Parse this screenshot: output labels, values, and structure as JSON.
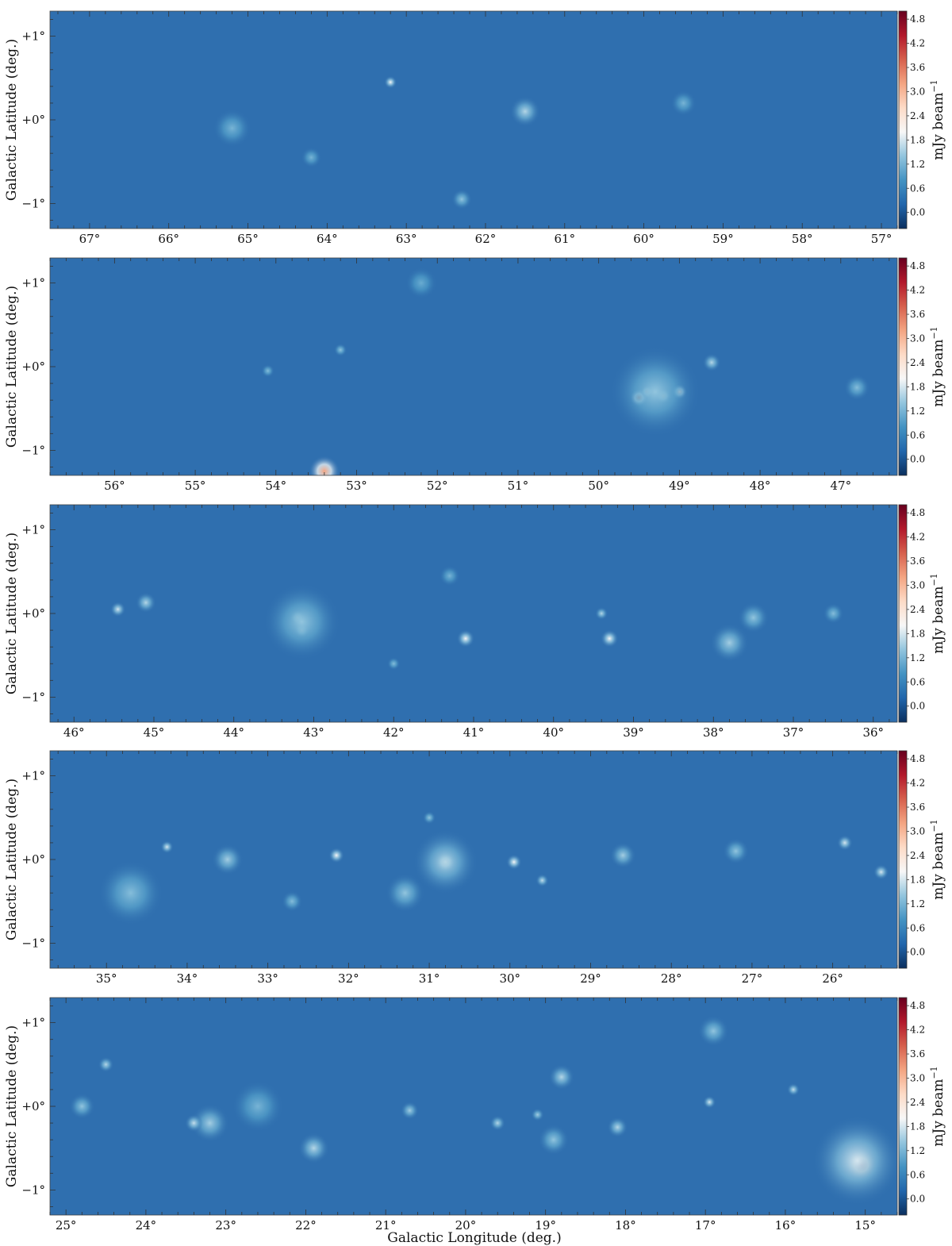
{
  "chart_data": {
    "type": "heatmap",
    "xlabel": "Galactic Longitude (deg.)",
    "ylabel": "Galactic Latitude (deg.)",
    "colorbar": {
      "label": "mJy beam$^{-1}$",
      "label_text": "mJy beam",
      "label_sup": "−1",
      "range": [
        -0.4,
        5.0
      ],
      "ticks": [
        "0.0",
        "0.6",
        "1.2",
        "1.8",
        "2.4",
        "3.0",
        "3.6",
        "4.2",
        "4.8"
      ],
      "tick_values": [
        0.0,
        0.6,
        1.2,
        1.8,
        2.4,
        3.0,
        3.6,
        4.2,
        4.8
      ],
      "colormap": "RdBu_r",
      "stops": [
        "#0b305f",
        "#2166ac",
        "#4393c3",
        "#92c5de",
        "#f7f7f7",
        "#fddbc7",
        "#f4a582",
        "#d6604d",
        "#b2182b",
        "#67001f"
      ]
    },
    "background_color": "#2f6faf",
    "panels": [
      {
        "xlim": [
          67.5,
          56.8
        ],
        "ylim": [
          -1.3,
          1.3
        ],
        "xticks": [
          67,
          66,
          65,
          64,
          63,
          62,
          61,
          60,
          59,
          58,
          57
        ],
        "xtick_labels": [
          "67°",
          "66°",
          "65°",
          "64°",
          "63°",
          "62°",
          "61°",
          "60°",
          "59°",
          "58°",
          "57°"
        ],
        "yticks": [
          1,
          0,
          -1
        ],
        "ytick_labels": [
          "+1°",
          "+0°",
          "−1°"
        ],
        "sources": [
          {
            "l": 63.2,
            "b": 0.45,
            "r": 0.05,
            "peak": 2.0
          },
          {
            "l": 61.5,
            "b": 0.1,
            "r": 0.12,
            "peak": 1.6
          },
          {
            "l": 65.2,
            "b": -0.1,
            "r": 0.15,
            "peak": 1.2
          },
          {
            "l": 62.3,
            "b": -0.95,
            "r": 0.08,
            "peak": 1.4
          },
          {
            "l": 59.5,
            "b": 0.2,
            "r": 0.1,
            "peak": 1.2
          },
          {
            "l": 64.2,
            "b": -0.45,
            "r": 0.08,
            "peak": 1.2
          }
        ]
      },
      {
        "xlim": [
          56.8,
          46.3
        ],
        "ylim": [
          -1.3,
          1.3
        ],
        "xticks": [
          56,
          55,
          54,
          53,
          52,
          51,
          50,
          49,
          48,
          47
        ],
        "xtick_labels": [
          "56°",
          "55°",
          "54°",
          "53°",
          "52°",
          "51°",
          "50°",
          "49°",
          "48°",
          "47°"
        ],
        "yticks": [
          1,
          0,
          -1
        ],
        "ytick_labels": [
          "+1°",
          "+0°",
          "−1°"
        ],
        "sources": [
          {
            "l": 49.5,
            "b": -0.37,
            "r": 0.07,
            "peak": 3.5
          },
          {
            "l": 49.4,
            "b": -0.3,
            "r": 0.05,
            "peak": 2.8
          },
          {
            "l": 49.2,
            "b": -0.35,
            "r": 0.06,
            "peak": 2.6
          },
          {
            "l": 49.0,
            "b": -0.3,
            "r": 0.06,
            "peak": 2.5
          },
          {
            "l": 49.3,
            "b": -0.3,
            "r": 0.35,
            "peak": 1.4
          },
          {
            "l": 48.6,
            "b": 0.05,
            "r": 0.07,
            "peak": 1.6
          },
          {
            "l": 46.8,
            "b": -0.25,
            "r": 0.1,
            "peak": 1.3
          },
          {
            "l": 53.4,
            "b": -1.25,
            "r": 0.12,
            "peak": 3.2
          },
          {
            "l": 52.2,
            "b": 1.0,
            "r": 0.12,
            "peak": 1.1
          },
          {
            "l": 53.2,
            "b": 0.2,
            "r": 0.05,
            "peak": 1.4
          },
          {
            "l": 54.1,
            "b": -0.05,
            "r": 0.05,
            "peak": 1.3
          }
        ]
      },
      {
        "xlim": [
          46.3,
          35.7
        ],
        "ylim": [
          -1.3,
          1.3
        ],
        "xticks": [
          46,
          45,
          44,
          43,
          42,
          41,
          40,
          39,
          38,
          37,
          36
        ],
        "xtick_labels": [
          "46°",
          "45°",
          "44°",
          "43°",
          "42°",
          "41°",
          "40°",
          "39°",
          "38°",
          "37°",
          "36°"
        ],
        "yticks": [
          1,
          0,
          -1
        ],
        "ytick_labels": [
          "+1°",
          "+0°",
          "−1°"
        ],
        "sources": [
          {
            "l": 43.2,
            "b": -0.05,
            "r": 0.06,
            "peak": 2.4
          },
          {
            "l": 43.15,
            "b": -0.2,
            "r": 0.06,
            "peak": 2.3
          },
          {
            "l": 43.15,
            "b": -0.1,
            "r": 0.3,
            "peak": 1.4
          },
          {
            "l": 45.45,
            "b": 0.05,
            "r": 0.06,
            "peak": 1.8
          },
          {
            "l": 45.1,
            "b": 0.13,
            "r": 0.08,
            "peak": 1.6
          },
          {
            "l": 41.1,
            "b": -0.3,
            "r": 0.07,
            "peak": 2.0
          },
          {
            "l": 39.3,
            "b": -0.3,
            "r": 0.07,
            "peak": 2.0
          },
          {
            "l": 39.4,
            "b": 0.0,
            "r": 0.05,
            "peak": 1.6
          },
          {
            "l": 37.8,
            "b": -0.35,
            "r": 0.15,
            "peak": 1.5
          },
          {
            "l": 37.5,
            "b": -0.05,
            "r": 0.12,
            "peak": 1.4
          },
          {
            "l": 36.5,
            "b": 0.0,
            "r": 0.08,
            "peak": 1.3
          },
          {
            "l": 42.0,
            "b": -0.6,
            "r": 0.05,
            "peak": 1.3
          },
          {
            "l": 41.3,
            "b": 0.45,
            "r": 0.08,
            "peak": 1.2
          }
        ]
      },
      {
        "xlim": [
          35.7,
          25.2
        ],
        "ylim": [
          -1.3,
          1.3
        ],
        "xticks": [
          35,
          34,
          33,
          32,
          31,
          30,
          29,
          28,
          27,
          26
        ],
        "xtick_labels": [
          "35°",
          "34°",
          "33°",
          "32°",
          "31°",
          "30°",
          "29°",
          "28°",
          "27°",
          "26°"
        ],
        "yticks": [
          1,
          0,
          -1
        ],
        "ytick_labels": [
          "+1°",
          "+0°",
          "−1°"
        ],
        "sources": [
          {
            "l": 30.8,
            "b": -0.03,
            "r": 0.07,
            "peak": 3.2
          },
          {
            "l": 30.8,
            "b": -0.03,
            "r": 0.25,
            "peak": 1.6
          },
          {
            "l": 34.7,
            "b": -0.4,
            "r": 0.25,
            "peak": 1.3
          },
          {
            "l": 34.25,
            "b": 0.15,
            "r": 0.05,
            "peak": 1.8
          },
          {
            "l": 33.5,
            "b": 0.0,
            "r": 0.12,
            "peak": 1.5
          },
          {
            "l": 32.15,
            "b": 0.05,
            "r": 0.06,
            "peak": 2.0
          },
          {
            "l": 31.3,
            "b": -0.4,
            "r": 0.15,
            "peak": 1.4
          },
          {
            "l": 29.95,
            "b": -0.03,
            "r": 0.06,
            "peak": 2.0
          },
          {
            "l": 29.6,
            "b": -0.25,
            "r": 0.05,
            "peak": 1.7
          },
          {
            "l": 28.6,
            "b": 0.05,
            "r": 0.1,
            "peak": 1.5
          },
          {
            "l": 27.2,
            "b": 0.1,
            "r": 0.1,
            "peak": 1.4
          },
          {
            "l": 25.85,
            "b": 0.2,
            "r": 0.06,
            "peak": 1.8
          },
          {
            "l": 25.4,
            "b": -0.15,
            "r": 0.06,
            "peak": 1.8
          },
          {
            "l": 32.7,
            "b": -0.5,
            "r": 0.08,
            "peak": 1.3
          },
          {
            "l": 31.0,
            "b": 0.5,
            "r": 0.05,
            "peak": 1.4
          }
        ]
      },
      {
        "xlim": [
          25.2,
          14.6
        ],
        "ylim": [
          -1.3,
          1.3
        ],
        "xticks": [
          25,
          24,
          23,
          22,
          21,
          20,
          19,
          18,
          17,
          16,
          15
        ],
        "xtick_labels": [
          "25°",
          "24°",
          "23°",
          "22°",
          "21°",
          "20°",
          "19°",
          "18°",
          "17°",
          "16°",
          "15°"
        ],
        "yticks": [
          1,
          0,
          -1
        ],
        "ytick_labels": [
          "+1°",
          "+0°",
          "−1°"
        ],
        "sources": [
          {
            "l": 15.05,
            "b": -0.7,
            "r": 0.12,
            "peak": 5.0
          },
          {
            "l": 15.1,
            "b": -0.65,
            "r": 0.35,
            "peak": 1.8
          },
          {
            "l": 18.8,
            "b": 0.35,
            "r": 0.1,
            "peak": 1.6
          },
          {
            "l": 18.1,
            "b": -0.25,
            "r": 0.08,
            "peak": 1.6
          },
          {
            "l": 21.9,
            "b": -0.5,
            "r": 0.12,
            "peak": 1.6
          },
          {
            "l": 23.2,
            "b": -0.2,
            "r": 0.15,
            "peak": 1.5
          },
          {
            "l": 23.4,
            "b": -0.2,
            "r": 0.07,
            "peak": 1.7
          },
          {
            "l": 24.5,
            "b": 0.5,
            "r": 0.06,
            "peak": 1.6
          },
          {
            "l": 24.8,
            "b": 0.0,
            "r": 0.1,
            "peak": 1.4
          },
          {
            "l": 19.6,
            "b": -0.2,
            "r": 0.06,
            "peak": 1.6
          },
          {
            "l": 19.1,
            "b": -0.1,
            "r": 0.05,
            "peak": 1.5
          },
          {
            "l": 18.9,
            "b": -0.4,
            "r": 0.12,
            "peak": 1.4
          },
          {
            "l": 16.9,
            "b": 0.9,
            "r": 0.12,
            "peak": 1.4
          },
          {
            "l": 16.95,
            "b": 0.05,
            "r": 0.05,
            "peak": 1.8
          },
          {
            "l": 15.9,
            "b": 0.2,
            "r": 0.05,
            "peak": 1.7
          },
          {
            "l": 20.7,
            "b": -0.05,
            "r": 0.07,
            "peak": 1.5
          },
          {
            "l": 22.6,
            "b": 0.0,
            "r": 0.2,
            "peak": 1.2
          }
        ]
      }
    ]
  }
}
